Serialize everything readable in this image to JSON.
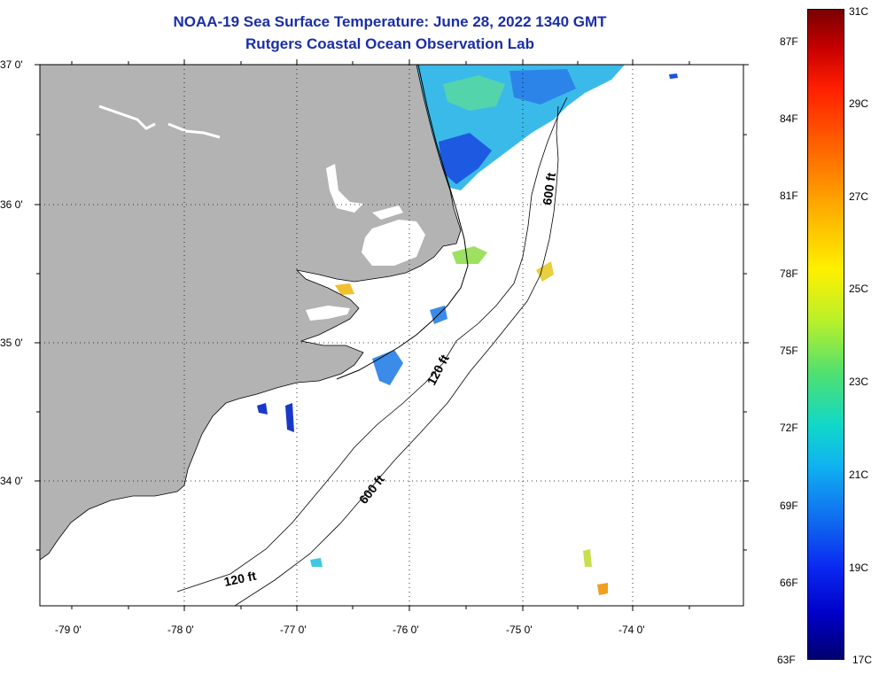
{
  "title": {
    "line1": "NOAA-19 Sea Surface Temperature:  June 28, 2022 1340 GMT",
    "line2": "Rutgers Coastal Ocean Observation Lab"
  },
  "axes": {
    "lat_labels": [
      "37 0'",
      "36 0'",
      "35 0'",
      "34 0'"
    ],
    "lon_labels": [
      "-79 0'",
      "-78 0'",
      "-77 0'",
      "-76 0'",
      "-75 0'",
      "-74 0'"
    ]
  },
  "contours": {
    "label_120_a": "120 ft",
    "label_120_b": "120 ft",
    "label_600_a": "600 ft",
    "label_600_b": "600 ft"
  },
  "colorbar": {
    "f_labels": [
      "87F",
      "84F",
      "81F",
      "78F",
      "75F",
      "72F",
      "69F",
      "66F",
      "63F"
    ],
    "c_labels": [
      "31C",
      "29C",
      "27C",
      "25C",
      "23C",
      "21C",
      "19C",
      "17C"
    ]
  },
  "colors": {
    "land": "#b3b3b3",
    "title": "#1a2ea8"
  }
}
